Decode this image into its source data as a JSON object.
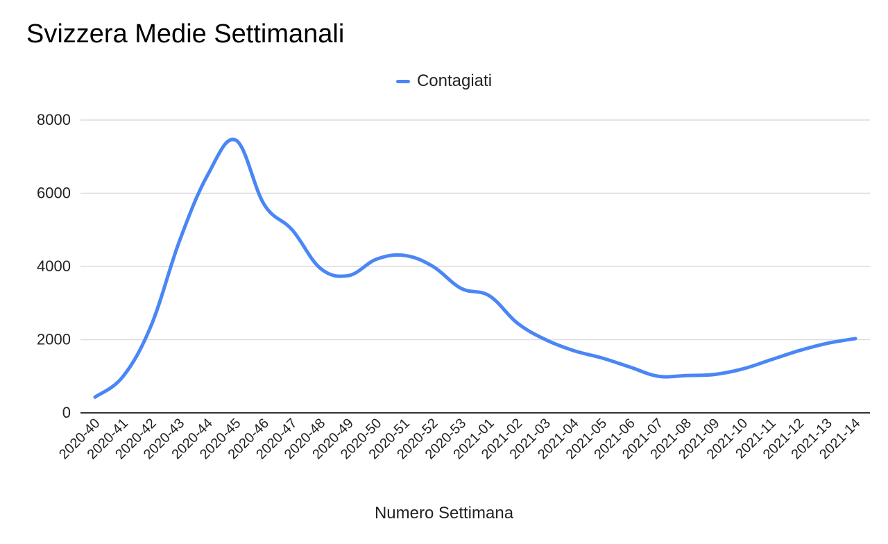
{
  "chart_data": {
    "type": "line",
    "title": "Svizzera Medie Settimanali",
    "xlabel": "Numero Settimana",
    "ylabel": "",
    "ylim": [
      0,
      8000
    ],
    "yticks": [
      0,
      2000,
      4000,
      6000,
      8000
    ],
    "grid": true,
    "legend_position": "top",
    "categories": [
      "2020-40",
      "2020-41",
      "2020-42",
      "2020-43",
      "2020-44",
      "2020-45",
      "2020-46",
      "2020-47",
      "2020-48",
      "2020-49",
      "2020-50",
      "2020-51",
      "2020-52",
      "2020-53",
      "2021-01",
      "2021-02",
      "2021-03",
      "2021-04",
      "2021-05",
      "2021-06",
      "2021-07",
      "2021-08",
      "2021-09",
      "2021-10",
      "2021-11",
      "2021-12",
      "2021-13",
      "2021-14"
    ],
    "series": [
      {
        "name": "Contagiati",
        "color": "#4a86f5",
        "values": [
          430,
          1000,
          2400,
          4700,
          6500,
          7450,
          5700,
          5000,
          3950,
          3750,
          4200,
          4300,
          4000,
          3400,
          3200,
          2450,
          2000,
          1700,
          1500,
          1250,
          1000,
          1020,
          1050,
          1200,
          1450,
          1700,
          1900,
          2030
        ]
      }
    ]
  }
}
